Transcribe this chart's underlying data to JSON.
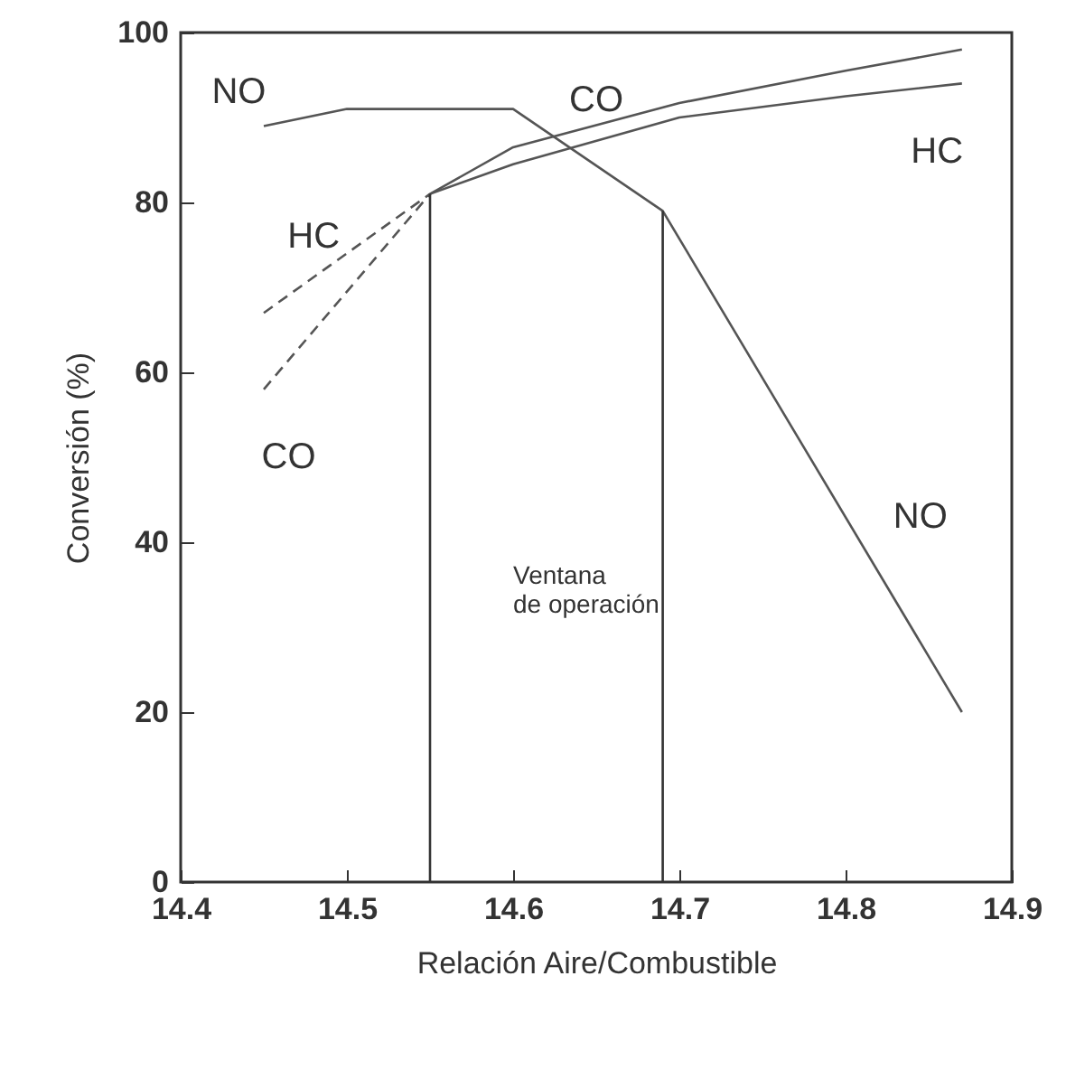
{
  "chart_data": {
    "type": "line",
    "xlabel": "Relación Aire/Combustible",
    "ylabel": "Conversión (%)",
    "xlim": [
      14.4,
      14.9
    ],
    "ylim": [
      0,
      100
    ],
    "xticks": [
      14.4,
      14.5,
      14.6,
      14.7,
      14.8,
      14.9
    ],
    "yticks": [
      0,
      20,
      40,
      60,
      80,
      100
    ],
    "grid": false,
    "marker": "none",
    "series": [
      {
        "color": "#555555",
        "line_style": "solid",
        "x": [
          14.45,
          14.5,
          14.6,
          14.69,
          14.87
        ],
        "values": [
          89,
          91,
          91,
          79,
          20
        ]
      },
      {
        "color": "#555555",
        "line_style": "solid",
        "x": [
          14.55,
          14.6,
          14.7,
          14.8,
          14.87
        ],
        "values": [
          81,
          86.5,
          91.7,
          95.5,
          98
        ]
      },
      {
        "color": "#555555",
        "line_style": "dashed",
        "x": [
          14.45,
          14.55
        ],
        "values": [
          58,
          81
        ]
      },
      {
        "color": "#555555",
        "line_style": "solid",
        "x": [
          14.55,
          14.6,
          14.7,
          14.8,
          14.87
        ],
        "values": [
          81,
          84.5,
          90,
          92.5,
          94
        ]
      },
      {
        "color": "#555555",
        "line_style": "dashed",
        "x": [
          14.45,
          14.55
        ],
        "values": [
          67,
          81
        ]
      },
      {
        "color": "#333333",
        "line_style": "solid",
        "x": [
          14.55,
          14.55
        ],
        "values": [
          0,
          81
        ]
      },
      {
        "color": "#333333",
        "line_style": "solid",
        "x": [
          14.69,
          14.69
        ],
        "values": [
          0,
          79
        ]
      }
    ],
    "annotations": [
      "NO",
      "HC",
      "CO",
      "CO",
      "HC",
      "NO",
      "Ventana\nde operación"
    ]
  }
}
